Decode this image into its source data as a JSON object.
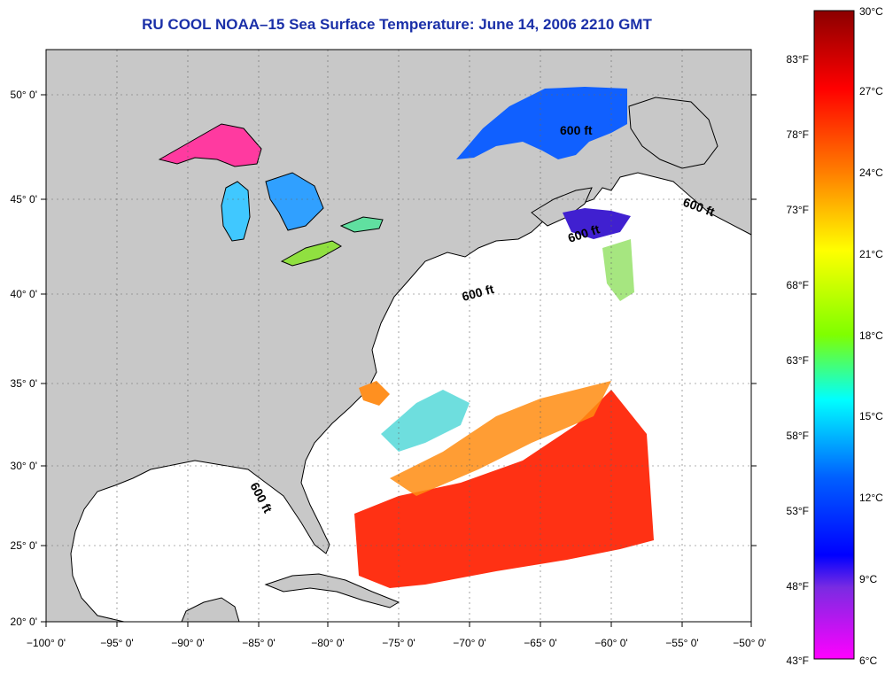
{
  "title": "RU COOL  NOAA–15  Sea Surface Temperature:  June 14, 2006 2210 GMT",
  "axes": {
    "lon_ticks": [
      "−100° 0'",
      "−95° 0'",
      "−90° 0'",
      "−85° 0'",
      "−80° 0'",
      "−75° 0'",
      "−70° 0'",
      "−65° 0'",
      "−60° 0'",
      "−55° 0'",
      "−50° 0'"
    ],
    "lat_ticks": [
      "50° 0'",
      "45° 0'",
      "40° 0'",
      "35° 0'",
      "30° 0'",
      "25° 0'",
      "20° 0'"
    ]
  },
  "isobath_labels": [
    "600 ft",
    "600 ft",
    "600 ft",
    "600 ft",
    "600 ft"
  ],
  "colorbar": {
    "celsius": [
      "30°C",
      "27°C",
      "24°C",
      "21°C",
      "18°C",
      "15°C",
      "12°C",
      "9°C",
      "6°C"
    ],
    "fahrenheit": [
      "83°F",
      "78°F",
      "73°F",
      "68°F",
      "63°F",
      "58°F",
      "53°F",
      "48°F",
      "43°F"
    ],
    "colors": [
      "#8b0000",
      "#ff0000",
      "#ff8c00",
      "#ffff00",
      "#7fff00",
      "#00ffff",
      "#0050ff",
      "#0000ff",
      "#8a2be2",
      "#ff00ff"
    ]
  },
  "colors": {
    "land": "#c8c8c8",
    "ocean": "#ffffff",
    "title": "#1a2fa8"
  }
}
